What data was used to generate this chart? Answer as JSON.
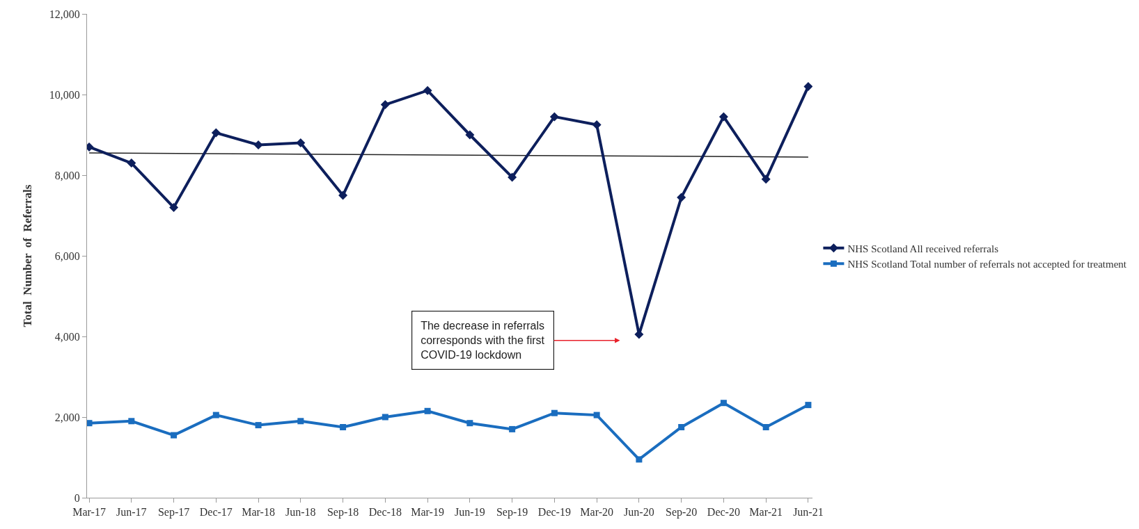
{
  "chart_data": {
    "type": "line",
    "ylabel": "Total  Number  of  Referrals",
    "categories": [
      "Mar-17",
      "Jun-17",
      "Sep-17",
      "Dec-17",
      "Mar-18",
      "Jun-18",
      "Sep-18",
      "Dec-18",
      "Mar-19",
      "Jun-19",
      "Sep-19",
      "Dec-19",
      "Mar-20",
      "Jun-20",
      "Sep-20",
      "Dec-20",
      "Mar-21",
      "Jun-21"
    ],
    "series": [
      {
        "name": "NHS Scotland All received referrals",
        "color": "#0d1f5c",
        "marker": "diamond",
        "values": [
          8700,
          8300,
          7200,
          9050,
          8750,
          8800,
          7500,
          9750,
          10100,
          9000,
          7950,
          9450,
          9250,
          4050,
          7450,
          9450,
          7900,
          10200
        ]
      },
      {
        "name": "NHS Scotland Total number of referrals not accepted for treatment",
        "color": "#1a6dbf",
        "marker": "square",
        "values": [
          1850,
          1900,
          1550,
          2050,
          1800,
          1900,
          1750,
          2000,
          2150,
          1850,
          1700,
          2100,
          2050,
          950,
          1750,
          2350,
          1750,
          2300
        ]
      },
      {
        "type": "line",
        "color": "#222222",
        "marker": "none",
        "x": [
          "Mar-17",
          "Jun-21"
        ],
        "values": [
          8550,
          8450
        ]
      }
    ],
    "ylim": [
      0,
      12000
    ],
    "yticks": [
      0,
      {
        "value": 2000,
        "label": "2,000"
      },
      {
        "value": 4000,
        "label": "4,000"
      },
      {
        "value": 6000,
        "label": "6,000"
      },
      {
        "value": 8000,
        "label": "8,000"
      },
      {
        "value": 10000,
        "label": "10,000"
      },
      {
        "value": 12000,
        "label": "12,000"
      }
    ],
    "annotations": [
      "The decrease in referrals\ncorresponds with the first\nCOVID-19 lockdown"
    ],
    "grid": false,
    "legend": "right"
  }
}
